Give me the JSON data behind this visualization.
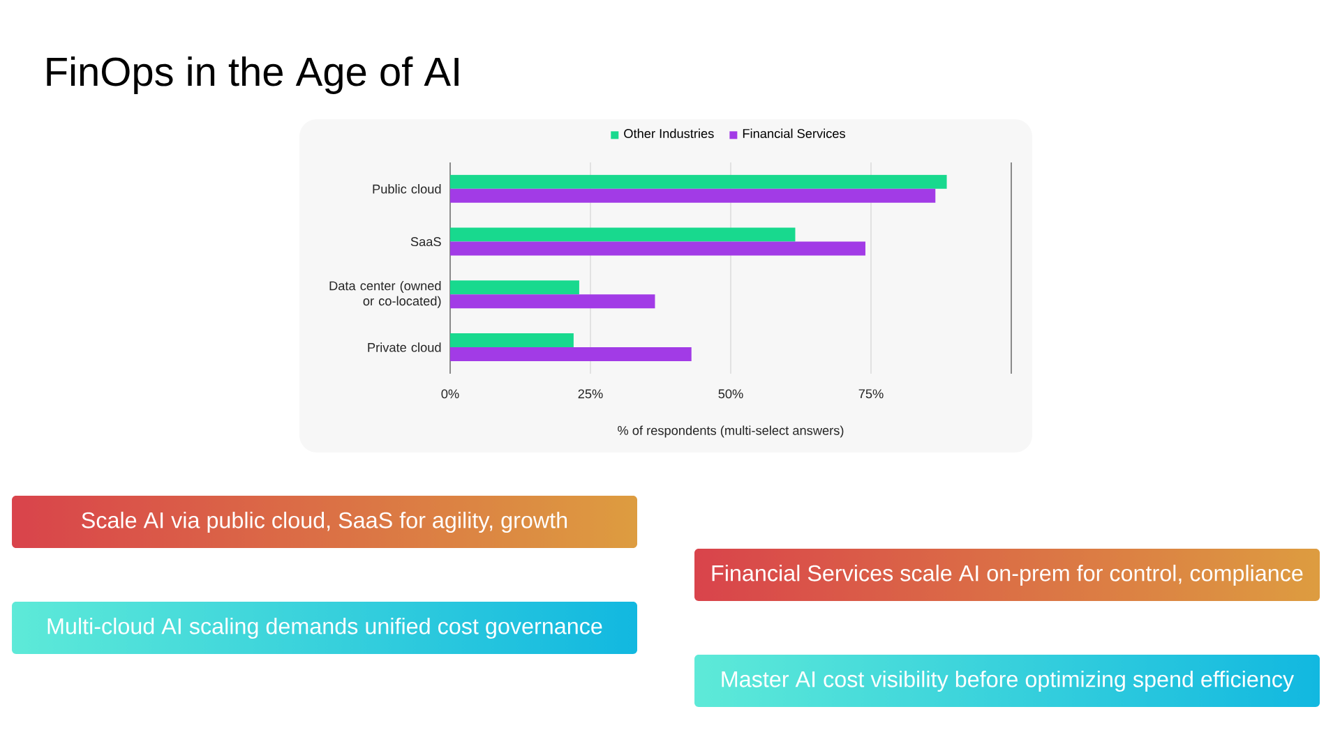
{
  "chart_data": {
    "type": "bar",
    "orientation": "horizontal",
    "title": "FinOps in the Age of AI",
    "categories": [
      "Public cloud",
      "SaaS",
      "Data center (owned or co-located)",
      "Private cloud"
    ],
    "series": [
      {
        "name": "Other Industries",
        "color": "#18d98e",
        "values": [
          88.5,
          61.5,
          23,
          22
        ]
      },
      {
        "name": "Financial Services",
        "color": "#a23be6",
        "values": [
          86.5,
          74,
          36.5,
          43
        ]
      }
    ],
    "xlabel": "% of respondents (multi-select answers)",
    "xlim": [
      0,
      100
    ],
    "xticks": [
      {
        "value": 0,
        "label": "0%"
      },
      {
        "value": 25,
        "label": "25%"
      },
      {
        "value": 50,
        "label": "50%"
      },
      {
        "value": 75,
        "label": "75%"
      },
      {
        "value": 100,
        "label": null
      }
    ],
    "grid": "x",
    "legend": "top",
    "annotations": [
      "Scale AI via public cloud, SaaS for agility, growth",
      "Financial Services scale AI on-prem for control, compliance",
      "Multi-cloud AI scaling demands unified cost governance",
      "Master AI cost visibility before optimizing spend efficiency"
    ]
  }
}
